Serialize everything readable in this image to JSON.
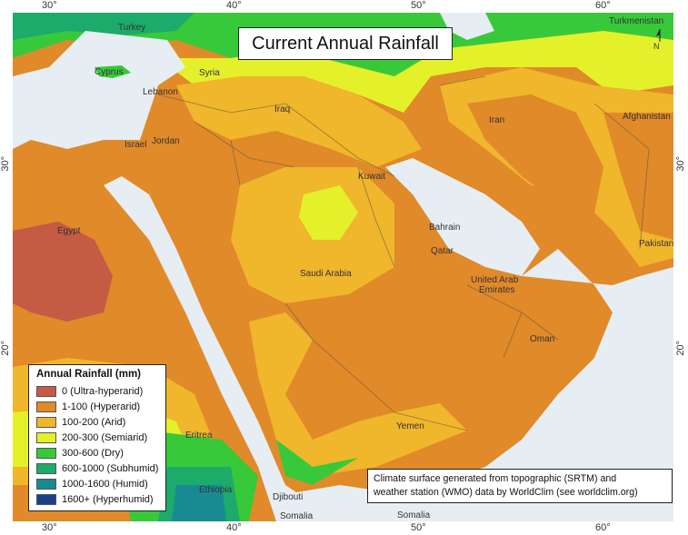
{
  "title": "Current Annual Rainfall",
  "ticks": {
    "top": [
      "30°",
      "40°",
      "50°",
      "60°"
    ],
    "bottom": [
      "30°",
      "40°",
      "50°",
      "60°"
    ],
    "left": [
      "30°",
      "20°"
    ],
    "right": [
      "30°",
      "20°"
    ]
  },
  "places": {
    "turkey": "Turkey",
    "turkmenistan": "Turkmenistan",
    "cyprus": "Cyprus",
    "syria": "Syria",
    "lebanon": "Lebanon",
    "iraq": "Iraq",
    "iran": "Iran",
    "afghanistan": "Afghanistan",
    "israel": "Israel",
    "jordan": "Jordan",
    "kuwait": "Kuwait",
    "egypt": "Egypt",
    "bahrain": "Bahrain",
    "qatar": "Qatar",
    "pakistan": "Pakistan",
    "saudi_arabia": "Saudi Arabia",
    "uae_line1": "United Arab",
    "uae_line2": "Emirates",
    "oman": "Oman",
    "yemen": "Yemen",
    "eritrea": "Eritrea",
    "ethiopia": "Ethiopia",
    "djibouti": "Djibouti",
    "somalia_west": "Somalia",
    "somalia_east": "Somalia"
  },
  "north_label": "N",
  "legend": {
    "title": "Annual Rainfall (mm)",
    "items": [
      {
        "label": "0 (Ultra-hyperarid)",
        "color": "#c55a45"
      },
      {
        "label": "1-100 (Hyperarid)",
        "color": "#e08a2a"
      },
      {
        "label": "100-200 (Arid)",
        "color": "#f0b62c"
      },
      {
        "label": "200-300 (Semiarid)",
        "color": "#e4f12a"
      },
      {
        "label": "300-600 (Dry)",
        "color": "#38c93a"
      },
      {
        "label": "600-1000 (Subhumid)",
        "color": "#1cab6a"
      },
      {
        "label": "1000-1600 (Humid)",
        "color": "#1a8a92"
      },
      {
        "label": "1600+ (Hyperhumid)",
        "color": "#1c3f8a"
      }
    ]
  },
  "credit": {
    "line1": "Climate surface generated from topographic (SRTM) and",
    "line2": "weather station (WMO) data by WorldClim (see worldclim.org)"
  },
  "colors": {
    "sea": "#e6eef4",
    "border": "#6b5a3c"
  }
}
